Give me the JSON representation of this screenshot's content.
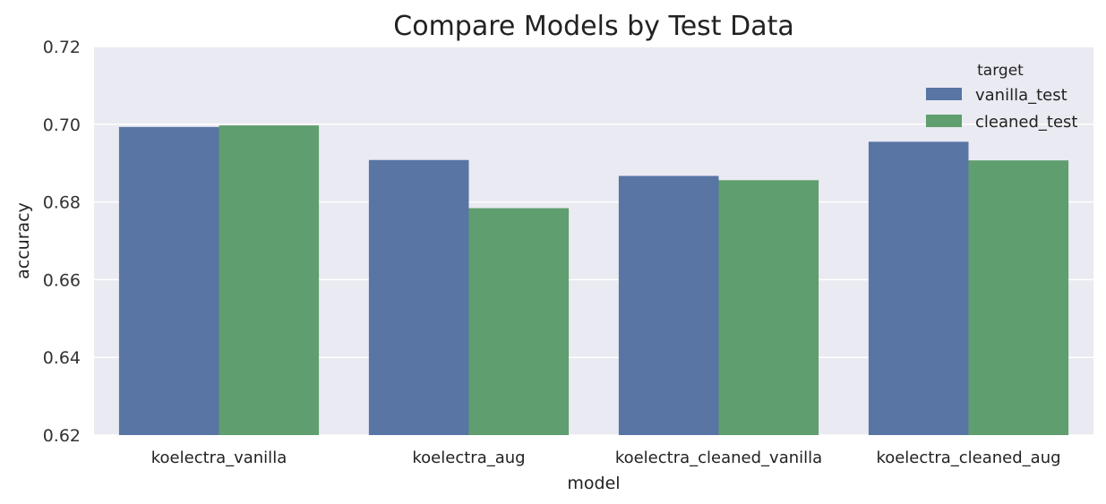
{
  "chart_data": {
    "type": "bar",
    "title": "Compare Models by Test Data",
    "xlabel": "model",
    "ylabel": "accuracy",
    "ylim": [
      0.62,
      0.72
    ],
    "yticks": [
      "0.62",
      "0.64",
      "0.66",
      "0.68",
      "0.70",
      "0.72"
    ],
    "grid": true,
    "legend_position": "top-right",
    "legend_title": "target",
    "categories": [
      "koelectra_vanilla",
      "koelectra_aug",
      "koelectra_cleaned_vanilla",
      "koelectra_cleaned_aug"
    ],
    "series": [
      {
        "name": "vanilla_test",
        "color": "#5875a4",
        "values": [
          0.6993,
          0.6908,
          0.6867,
          0.6955
        ]
      },
      {
        "name": "cleaned_test",
        "color": "#5f9e6e",
        "values": [
          0.6997,
          0.6784,
          0.6856,
          0.6907
        ]
      }
    ],
    "colors": {
      "plot_background": "#eaeaf2",
      "gridline": "#ffffff"
    }
  }
}
